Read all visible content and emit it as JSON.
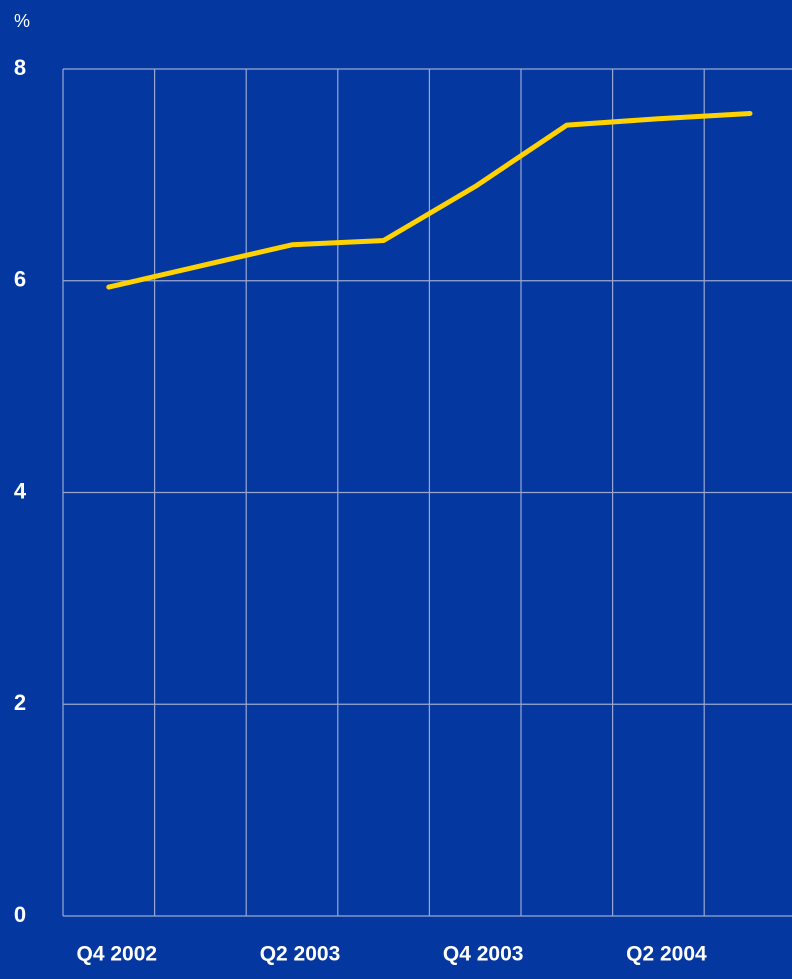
{
  "chart_data": {
    "type": "line",
    "y_label": "%",
    "categories": [
      "Q4 2002",
      null,
      "Q2 2003",
      null,
      "Q4 2003",
      null,
      "Q2 2004",
      null
    ],
    "series": [
      {
        "name": null,
        "color": "#ffd200",
        "values": [
          5.94,
          6.14,
          6.34,
          6.38,
          6.89,
          7.47,
          7.53,
          7.58
        ]
      }
    ],
    "ylim": [
      0,
      8
    ],
    "yticks": [
      0,
      2,
      4,
      6,
      8
    ],
    "grid": true
  }
}
